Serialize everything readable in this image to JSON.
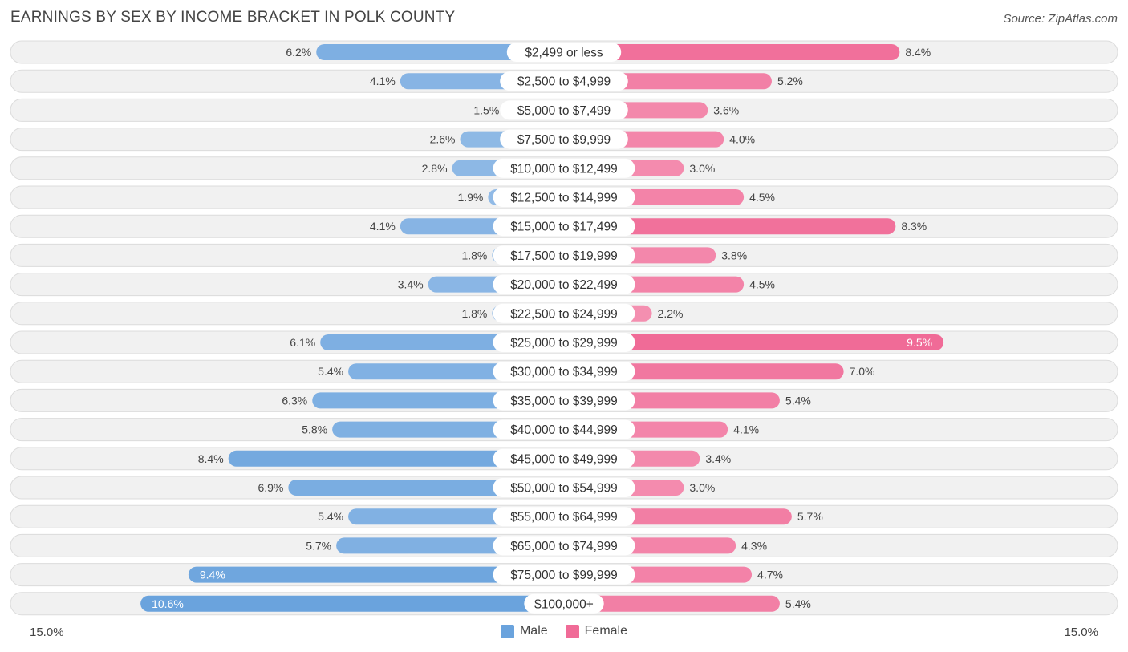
{
  "title": "EARNINGS BY SEX BY INCOME BRACKET IN POLK COUNTY",
  "source": "Source: ZipAtlas.com",
  "axis": {
    "left_label": "15.0%",
    "right_label": "15.0%"
  },
  "legend": {
    "male_label": "Male",
    "female_label": "Female"
  },
  "colors": {
    "male": "#6aa3dd",
    "male_light": "#a9c9ec",
    "female": "#f06b97",
    "female_light": "#f7a9c3",
    "row_bg": "#f1f1f1",
    "row_border": "#dcdcdc"
  },
  "chart_data": {
    "type": "bar",
    "orientation": "horizontal-diverging",
    "title": "EARNINGS BY SEX BY INCOME BRACKET IN POLK COUNTY",
    "xlim": [
      -15.0,
      15.0
    ],
    "unit": "%",
    "categories": [
      "$2,499 or less",
      "$2,500 to $4,999",
      "$5,000 to $7,499",
      "$7,500 to $9,999",
      "$10,000 to $12,499",
      "$12,500 to $14,999",
      "$15,000 to $17,499",
      "$17,500 to $19,999",
      "$20,000 to $22,499",
      "$22,500 to $24,999",
      "$25,000 to $29,999",
      "$30,000 to $34,999",
      "$35,000 to $39,999",
      "$40,000 to $44,999",
      "$45,000 to $49,999",
      "$50,000 to $54,999",
      "$55,000 to $64,999",
      "$65,000 to $74,999",
      "$75,000 to $99,999",
      "$100,000+"
    ],
    "series": [
      {
        "name": "Male",
        "values": [
          6.2,
          4.1,
          1.5,
          2.6,
          2.8,
          1.9,
          4.1,
          1.8,
          3.4,
          1.8,
          6.1,
          5.4,
          6.3,
          5.8,
          8.4,
          6.9,
          5.4,
          5.7,
          9.4,
          10.6
        ],
        "labels": [
          "6.2%",
          "4.1%",
          "1.5%",
          "2.6%",
          "2.8%",
          "1.9%",
          "4.1%",
          "1.8%",
          "3.4%",
          "1.8%",
          "6.1%",
          "5.4%",
          "6.3%",
          "5.8%",
          "8.4%",
          "6.9%",
          "5.4%",
          "5.7%",
          "9.4%",
          "10.6%"
        ]
      },
      {
        "name": "Female",
        "values": [
          8.4,
          5.2,
          3.6,
          4.0,
          3.0,
          4.5,
          8.3,
          3.8,
          4.5,
          2.2,
          9.5,
          7.0,
          5.4,
          4.1,
          3.4,
          3.0,
          5.7,
          4.3,
          4.7,
          5.4
        ],
        "labels": [
          "8.4%",
          "5.2%",
          "3.6%",
          "4.0%",
          "3.0%",
          "4.5%",
          "8.3%",
          "3.8%",
          "4.5%",
          "2.2%",
          "9.5%",
          "7.0%",
          "5.4%",
          "4.1%",
          "3.4%",
          "3.0%",
          "5.7%",
          "4.3%",
          "4.7%",
          "5.4%"
        ]
      }
    ]
  }
}
